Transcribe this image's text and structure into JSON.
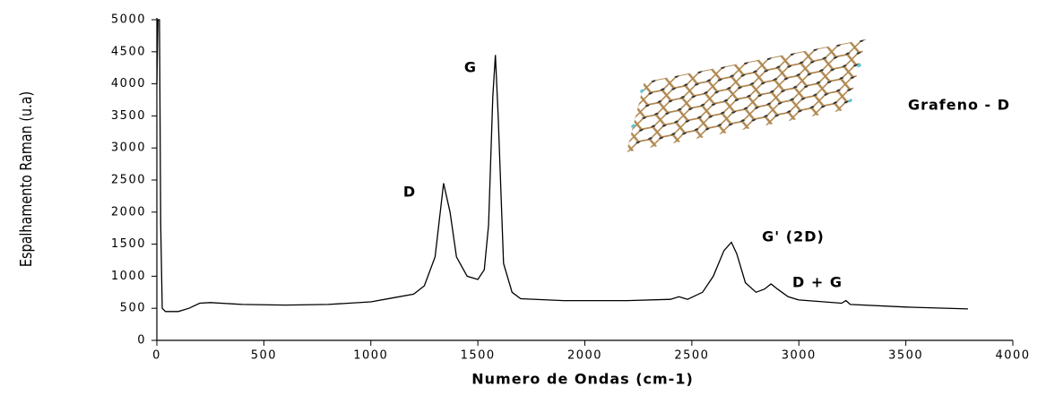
{
  "chart_data": {
    "type": "line",
    "xlabel": "Numero de Ondas (cm-1)",
    "ylabel": "Espalhamento Raman (u.a)",
    "x": [
      0,
      5,
      12,
      18,
      25,
      40,
      100,
      150,
      200,
      250,
      400,
      600,
      800,
      1000,
      1100,
      1200,
      1250,
      1300,
      1340,
      1370,
      1400,
      1450,
      1500,
      1530,
      1550,
      1570,
      1582,
      1595,
      1620,
      1660,
      1700,
      1900,
      2200,
      2400,
      2440,
      2480,
      2550,
      2600,
      2650,
      2685,
      2710,
      2750,
      2800,
      2840,
      2870,
      2900,
      2950,
      3000,
      3200,
      3220,
      3240,
      3500,
      3790
    ],
    "values": [
      4000,
      5000,
      5000,
      1800,
      500,
      450,
      450,
      500,
      580,
      590,
      560,
      550,
      560,
      600,
      660,
      720,
      850,
      1300,
      2450,
      2000,
      1300,
      1000,
      950,
      1100,
      1800,
      3800,
      4450,
      3500,
      1200,
      750,
      650,
      620,
      620,
      640,
      680,
      640,
      750,
      1000,
      1400,
      1530,
      1350,
      900,
      750,
      800,
      880,
      800,
      680,
      630,
      580,
      620,
      560,
      520,
      490
    ],
    "color": "#000000",
    "xlim": [
      0,
      4000
    ],
    "xticks": [
      0,
      500,
      1000,
      1500,
      2000,
      2500,
      3000,
      3500,
      4000
    ],
    "ylim": [
      0,
      5000
    ],
    "yticks": [
      0,
      500,
      1000,
      1500,
      2000,
      2500,
      3000,
      3500,
      4000,
      4500,
      5000
    ],
    "annotations": [
      "G",
      "D",
      "G' (2D)",
      "D + G",
      "Grafeno - D"
    ]
  }
}
